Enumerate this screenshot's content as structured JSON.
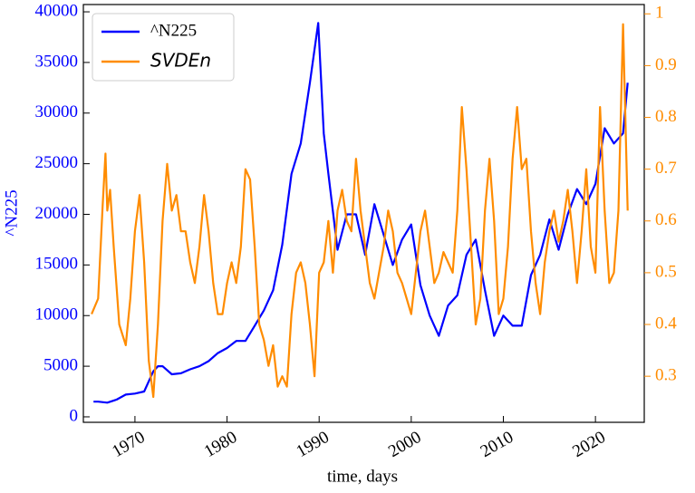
{
  "chart_data": {
    "type": "line",
    "x_label": "time, days",
    "y_label": "^N225",
    "xlim": [
      1964.4,
      2025.3
    ],
    "xticks": [
      1970,
      1980,
      1990,
      2000,
      2010,
      2020
    ],
    "ylim": [
      -540,
      40720
    ],
    "yticks": [
      0,
      5000,
      10000,
      15000,
      20000,
      25000,
      30000,
      35000,
      40000
    ],
    "y2lim": [
      0.211,
      1.018
    ],
    "y2ticks": [
      0.3,
      0.4,
      0.5,
      0.6,
      0.7,
      0.8,
      0.9,
      1.0
    ],
    "legend": "upper left",
    "series": [
      {
        "name": "^N225",
        "color": "#0000ff",
        "axis": "y",
        "x": [
          1965.5,
          1966,
          1967,
          1968,
          1969,
          1970,
          1971,
          1972,
          1972.5,
          1973,
          1974,
          1975,
          1976,
          1977,
          1978,
          1979,
          1980,
          1981,
          1982,
          1983,
          1984,
          1985,
          1986,
          1987,
          1988,
          1989,
          1989.9,
          1990.5,
          1991,
          1992,
          1993,
          1994,
          1995,
          1996,
          1997,
          1998,
          1999,
          2000,
          2001,
          2002,
          2003,
          2004,
          2005,
          2006,
          2007,
          2008,
          2009,
          2010,
          2011,
          2012,
          2013,
          2014,
          2015,
          2016,
          2017,
          2018,
          2019,
          2020,
          2021,
          2022,
          2023,
          2023.5
        ],
        "values": [
          1500,
          1500,
          1400,
          1700,
          2200,
          2300,
          2500,
          4500,
          5000,
          5000,
          4200,
          4300,
          4700,
          5000,
          5500,
          6300,
          6800,
          7500,
          7500,
          9000,
          10500,
          12500,
          17000,
          24000,
          27000,
          33000,
          38900,
          28000,
          24000,
          16500,
          20000,
          20000,
          16000,
          21000,
          18000,
          15000,
          17500,
          19000,
          13000,
          10000,
          8000,
          11000,
          12000,
          16000,
          17500,
          12500,
          8000,
          10000,
          9000,
          9000,
          14000,
          16000,
          19500,
          16500,
          20000,
          22500,
          21000,
          23000,
          28500,
          27000,
          28000,
          33000
        ]
      },
      {
        "name": "SVDEn",
        "color": "#ff8c00",
        "axis": "y2",
        "x": [
          1965.3,
          1966,
          1966.5,
          1966.8,
          1967,
          1967.3,
          1967.7,
          1968.3,
          1969,
          1969.5,
          1970,
          1970.5,
          1971,
          1971.5,
          1972,
          1972.5,
          1973,
          1973.5,
          1974,
          1974.5,
          1975,
          1975.5,
          1976,
          1976.5,
          1977,
          1977.5,
          1978,
          1978.5,
          1979,
          1979.5,
          1980,
          1980.5,
          1981,
          1981.5,
          1982,
          1982.5,
          1983,
          1983.5,
          1984,
          1984.5,
          1985,
          1985.5,
          1986,
          1986.5,
          1987,
          1987.5,
          1988,
          1988.5,
          1989,
          1989.5,
          1990,
          1990.5,
          1991,
          1991.5,
          1992,
          1992.5,
          1993,
          1993.5,
          1994,
          1994.5,
          1995,
          1995.5,
          1996,
          1996.5,
          1997,
          1997.5,
          1998,
          1998.5,
          1999,
          1999.5,
          2000,
          2000.5,
          2001,
          2001.5,
          2002,
          2002.5,
          2003,
          2003.5,
          2004,
          2004.5,
          2005,
          2005.5,
          2006,
          2006.5,
          2007,
          2007.5,
          2008,
          2008.5,
          2009,
          2009.5,
          2010,
          2010.5,
          2011,
          2011.5,
          2012,
          2012.5,
          2013,
          2013.5,
          2014,
          2014.5,
          2015,
          2015.5,
          2016,
          2016.5,
          2017,
          2017.5,
          2018,
          2018.5,
          2019,
          2019.5,
          2020,
          2020.5,
          2021,
          2021.5,
          2022,
          2022.5,
          2023,
          2023.5
        ],
        "values": [
          0.42,
          0.45,
          0.63,
          0.73,
          0.62,
          0.66,
          0.55,
          0.4,
          0.36,
          0.45,
          0.58,
          0.65,
          0.52,
          0.33,
          0.26,
          0.4,
          0.6,
          0.71,
          0.62,
          0.65,
          0.58,
          0.58,
          0.52,
          0.48,
          0.55,
          0.65,
          0.58,
          0.48,
          0.42,
          0.42,
          0.48,
          0.52,
          0.48,
          0.55,
          0.7,
          0.68,
          0.55,
          0.4,
          0.37,
          0.32,
          0.36,
          0.28,
          0.3,
          0.28,
          0.42,
          0.5,
          0.52,
          0.48,
          0.4,
          0.3,
          0.5,
          0.52,
          0.6,
          0.5,
          0.62,
          0.66,
          0.6,
          0.58,
          0.72,
          0.62,
          0.55,
          0.48,
          0.45,
          0.5,
          0.55,
          0.62,
          0.58,
          0.5,
          0.48,
          0.45,
          0.42,
          0.5,
          0.58,
          0.62,
          0.55,
          0.48,
          0.5,
          0.54,
          0.52,
          0.5,
          0.62,
          0.82,
          0.7,
          0.55,
          0.4,
          0.45,
          0.62,
          0.72,
          0.6,
          0.42,
          0.45,
          0.55,
          0.72,
          0.82,
          0.7,
          0.72,
          0.58,
          0.48,
          0.42,
          0.52,
          0.58,
          0.62,
          0.56,
          0.6,
          0.66,
          0.58,
          0.48,
          0.58,
          0.7,
          0.55,
          0.5,
          0.82,
          0.62,
          0.48,
          0.5,
          0.62,
          0.98,
          0.62
        ]
      }
    ]
  }
}
